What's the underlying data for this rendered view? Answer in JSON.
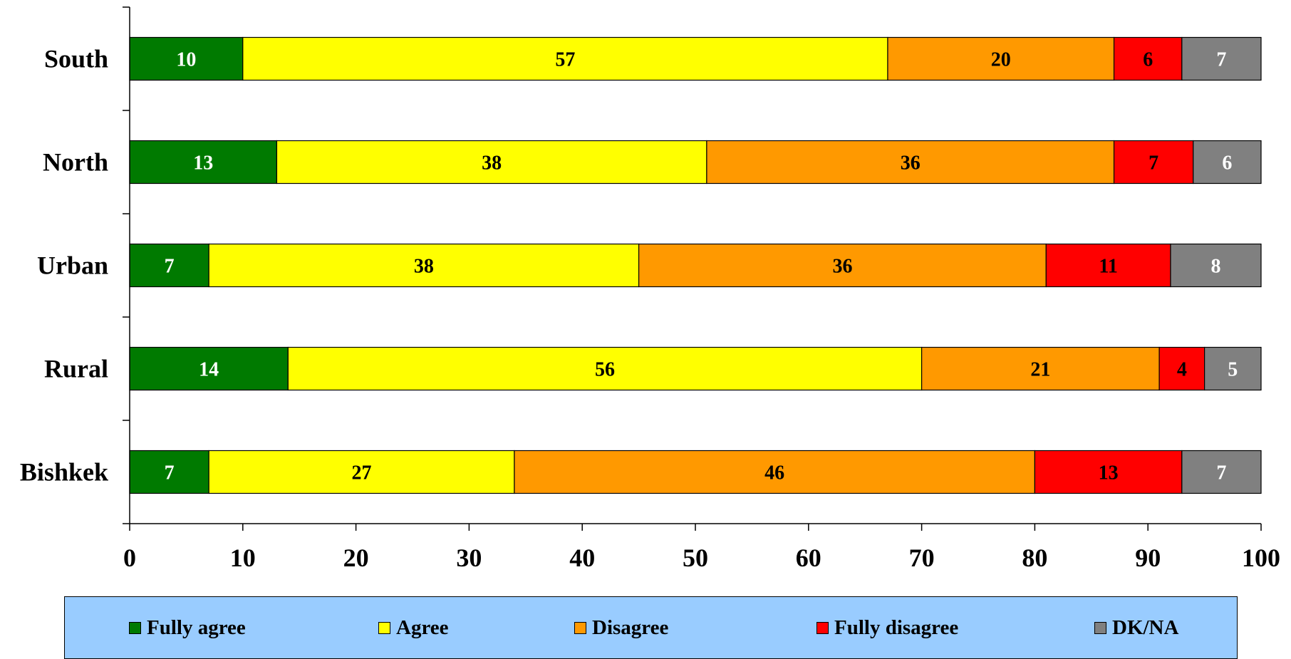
{
  "chart_data": {
    "type": "bar",
    "orientation": "horizontal",
    "stacked": true,
    "categories": [
      "South",
      "North",
      "Urban",
      "Rural",
      "Bishkek"
    ],
    "series": [
      {
        "name": "Fully agree",
        "color": "#007a00",
        "label_color": "#ffffff",
        "values": [
          10,
          13,
          7,
          14,
          7
        ]
      },
      {
        "name": "Agree",
        "color": "#ffff00",
        "label_color": "#000000",
        "values": [
          57,
          38,
          38,
          56,
          27
        ]
      },
      {
        "name": "Disagree",
        "color": "#ff9900",
        "label_color": "#000000",
        "values": [
          20,
          36,
          36,
          21,
          46
        ]
      },
      {
        "name": "Fully disagree",
        "color": "#ff0000",
        "label_color": "#000000",
        "values": [
          6,
          7,
          11,
          4,
          13
        ]
      },
      {
        "name": "DK/NA",
        "color": "#808080",
        "label_color": "#ffffff",
        "values": [
          7,
          6,
          8,
          5,
          7
        ]
      }
    ],
    "xlim": [
      0,
      100
    ],
    "xticks": [
      0,
      10,
      20,
      30,
      40,
      50,
      60,
      70,
      80,
      90,
      100
    ],
    "grid": false,
    "legend_position": "bottom"
  }
}
